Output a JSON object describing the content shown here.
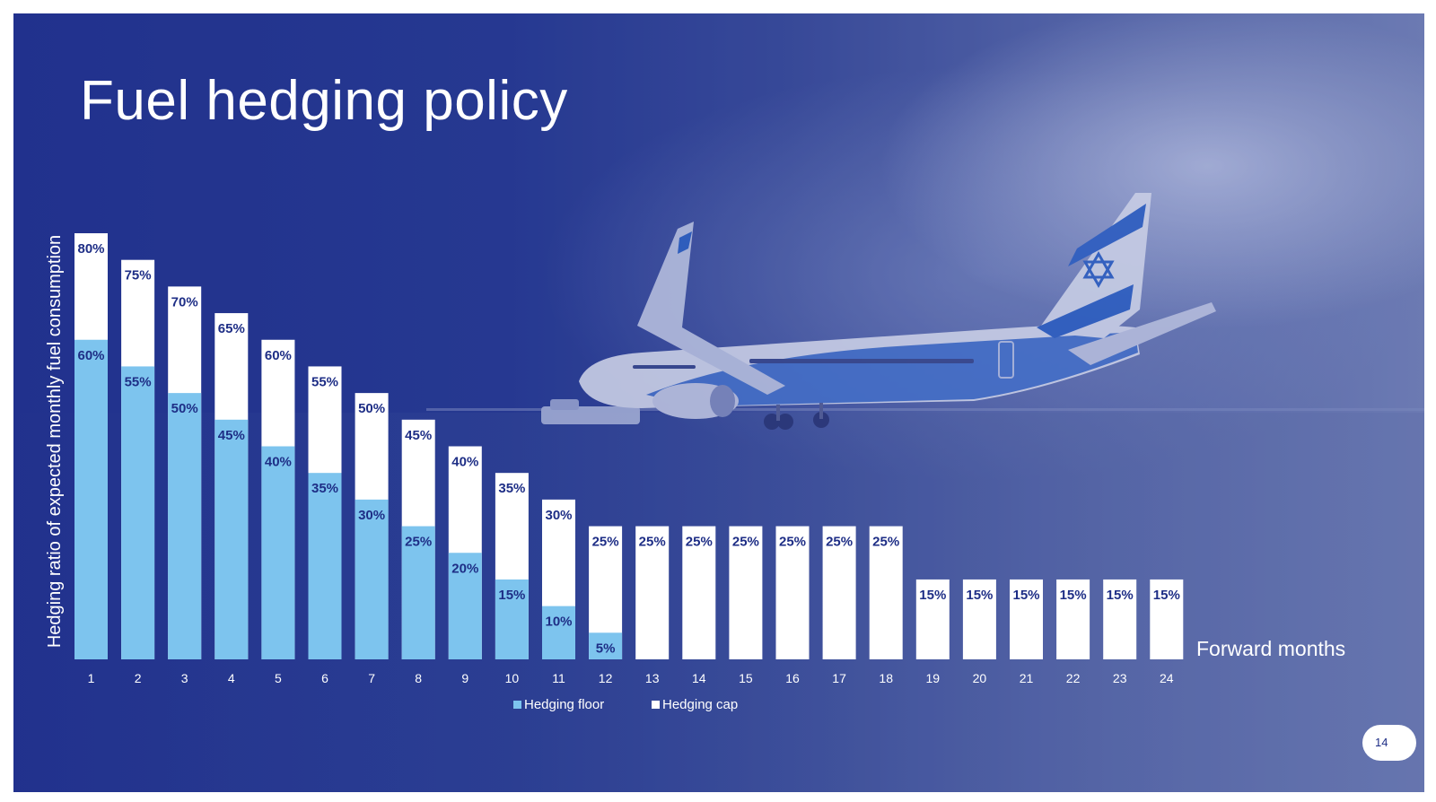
{
  "slide": {
    "title": "Fuel hedging policy",
    "page_number": "14"
  },
  "colors": {
    "background": "#20338c",
    "floor": "#7dc4ee",
    "cap": "#ffffff",
    "label_dark": "#1e2e86",
    "text_light": "#ffffff"
  },
  "chart_data": {
    "type": "bar",
    "title": "",
    "xlabel": "Forward months",
    "ylabel": "Hedging ratio of expected monthly fuel consumption",
    "ylim": [
      0,
      80
    ],
    "grid": false,
    "legend_position": "bottom-center",
    "categories": [
      "1",
      "2",
      "3",
      "4",
      "5",
      "6",
      "7",
      "8",
      "9",
      "10",
      "11",
      "12",
      "13",
      "14",
      "15",
      "16",
      "17",
      "18",
      "19",
      "20",
      "21",
      "22",
      "23",
      "24"
    ],
    "series": [
      {
        "name": "Hedging floor",
        "color": "#7dc4ee",
        "values": [
          60,
          55,
          50,
          45,
          40,
          35,
          30,
          25,
          20,
          15,
          10,
          5,
          null,
          null,
          null,
          null,
          null,
          null,
          null,
          null,
          null,
          null,
          null,
          null
        ],
        "labels": [
          "60%",
          "55%",
          "50%",
          "45%",
          "40%",
          "35%",
          "30%",
          "25%",
          "20%",
          "15%",
          "10%",
          "5%",
          "",
          "",
          "",
          "",
          "",
          "",
          "",
          "",
          "",
          "",
          "",
          ""
        ]
      },
      {
        "name": "Hedging cap",
        "color": "#ffffff",
        "values": [
          80,
          75,
          70,
          65,
          60,
          55,
          50,
          45,
          40,
          35,
          30,
          25,
          25,
          25,
          25,
          25,
          25,
          25,
          15,
          15,
          15,
          15,
          15,
          15
        ],
        "labels": [
          "80%",
          "75%",
          "70%",
          "65%",
          "60%",
          "55%",
          "50%",
          "45%",
          "40%",
          "35%",
          "30%",
          "25%",
          "25%",
          "25%",
          "25%",
          "25%",
          "25%",
          "25%",
          "15%",
          "15%",
          "15%",
          "15%",
          "15%",
          "15%"
        ]
      }
    ]
  }
}
